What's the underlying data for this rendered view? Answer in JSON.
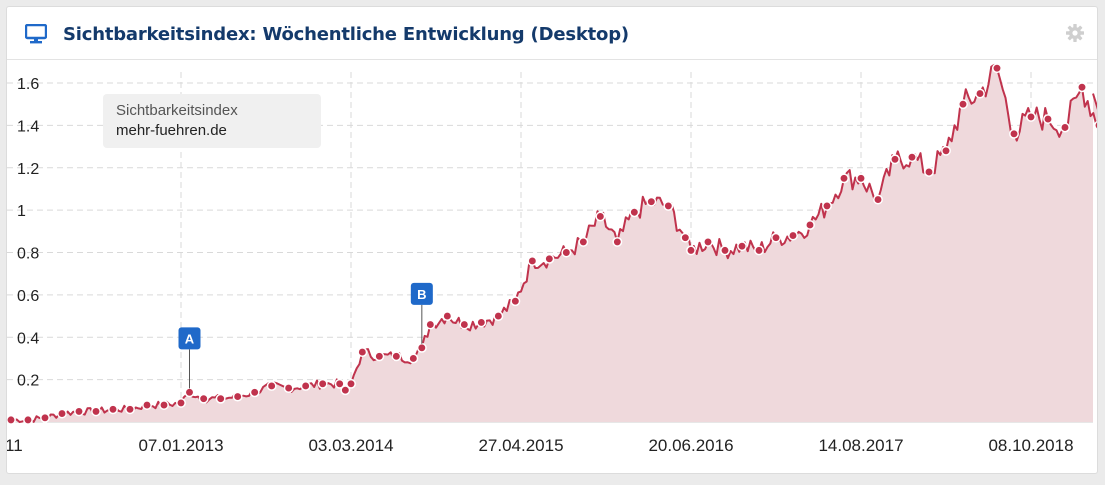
{
  "widget": {
    "title": "Sichtbarkeitsindex: Wöchentliche Entwicklung (Desktop)",
    "header_icon": "monitor-icon",
    "settings_icon": "gear-icon"
  },
  "legend": {
    "label": "Sichtbarkeitsindex",
    "domain": "mehr-fuehren.de"
  },
  "colors": {
    "accent": "#c0334d",
    "area_fill": "#efd9dc",
    "marker": "#1f69c9",
    "title": "#143a6b",
    "grid": "#d9d9d9"
  },
  "chart_data": {
    "type": "area",
    "ylim": [
      0,
      1.7
    ],
    "y_ticks": [
      0.2,
      0.4,
      0.6,
      0.8,
      1,
      1.2,
      1.4,
      1.6
    ],
    "y_tick_labels": [
      "0.2",
      "0.4",
      "0.6",
      "0.8",
      "1",
      "1.2",
      "1.4",
      "1.6"
    ],
    "x_tick_labels": [
      "07.01.2013",
      "03.03.2014",
      "27.04.2015",
      "20.06.2016",
      "14.08.2017",
      "08.10.2018"
    ],
    "x_first_label_fragment": "11",
    "grid": true,
    "annotations": [
      {
        "label": "A",
        "date": "2013-01-28",
        "value": 0.14
      },
      {
        "label": "B",
        "date": "2014-08-25",
        "value": 0.35
      }
    ],
    "series": [
      {
        "points": [
          [
            "2011-11-14",
            0.01
          ],
          [
            "2011-12-26",
            0.01
          ],
          [
            "2012-02-06",
            0.02
          ],
          [
            "2012-03-19",
            0.04
          ],
          [
            "2012-04-30",
            0.05
          ],
          [
            "2012-06-11",
            0.05
          ],
          [
            "2012-07-23",
            0.06
          ],
          [
            "2012-09-03",
            0.06
          ],
          [
            "2012-10-15",
            0.08
          ],
          [
            "2012-11-26",
            0.08
          ],
          [
            "2013-01-07",
            0.09
          ],
          [
            "2013-01-28",
            0.14
          ],
          [
            "2013-03-04",
            0.11
          ],
          [
            "2013-04-15",
            0.11
          ],
          [
            "2013-05-27",
            0.12
          ],
          [
            "2013-07-08",
            0.14
          ],
          [
            "2013-08-19",
            0.17
          ],
          [
            "2013-09-30",
            0.16
          ],
          [
            "2013-11-11",
            0.17
          ],
          [
            "2013-12-23",
            0.18
          ],
          [
            "2014-02-03",
            0.18
          ],
          [
            "2014-02-17",
            0.15
          ],
          [
            "2014-03-03",
            0.18
          ],
          [
            "2014-03-31",
            0.33
          ],
          [
            "2014-05-12",
            0.31
          ],
          [
            "2014-06-23",
            0.31
          ],
          [
            "2014-08-04",
            0.3
          ],
          [
            "2014-08-25",
            0.35
          ],
          [
            "2014-09-15",
            0.46
          ],
          [
            "2014-10-27",
            0.5
          ],
          [
            "2014-12-08",
            0.46
          ],
          [
            "2015-01-19",
            0.47
          ],
          [
            "2015-03-02",
            0.5
          ],
          [
            "2015-04-13",
            0.57
          ],
          [
            "2015-05-25",
            0.76
          ],
          [
            "2015-07-06",
            0.77
          ],
          [
            "2015-08-17",
            0.8
          ],
          [
            "2015-09-28",
            0.85
          ],
          [
            "2015-11-09",
            0.97
          ],
          [
            "2015-12-21",
            0.85
          ],
          [
            "2016-02-01",
            0.99
          ],
          [
            "2016-03-14",
            1.04
          ],
          [
            "2016-04-25",
            1.02
          ],
          [
            "2016-06-06",
            0.87
          ],
          [
            "2016-06-20",
            0.81
          ],
          [
            "2016-08-01",
            0.85
          ],
          [
            "2016-09-12",
            0.81
          ],
          [
            "2016-10-24",
            0.83
          ],
          [
            "2016-12-05",
            0.81
          ],
          [
            "2017-01-16",
            0.87
          ],
          [
            "2017-02-27",
            0.88
          ],
          [
            "2017-04-10",
            0.93
          ],
          [
            "2017-05-22",
            1.02
          ],
          [
            "2017-07-03",
            1.15
          ],
          [
            "2017-08-14",
            1.15
          ],
          [
            "2017-09-25",
            1.05
          ],
          [
            "2017-11-06",
            1.24
          ],
          [
            "2017-12-18",
            1.25
          ],
          [
            "2018-01-29",
            1.18
          ],
          [
            "2018-03-12",
            1.28
          ],
          [
            "2018-04-23",
            1.5
          ],
          [
            "2018-06-04",
            1.55
          ],
          [
            "2018-07-16",
            1.67
          ],
          [
            "2018-08-27",
            1.36
          ],
          [
            "2018-10-08",
            1.44
          ],
          [
            "2018-11-19",
            1.43
          ],
          [
            "2018-12-31",
            1.39
          ],
          [
            "2019-02-11",
            1.58
          ],
          [
            "2019-03-25",
            1.4
          ],
          [
            "2019-04-15",
            1.33
          ]
        ]
      }
    ]
  }
}
